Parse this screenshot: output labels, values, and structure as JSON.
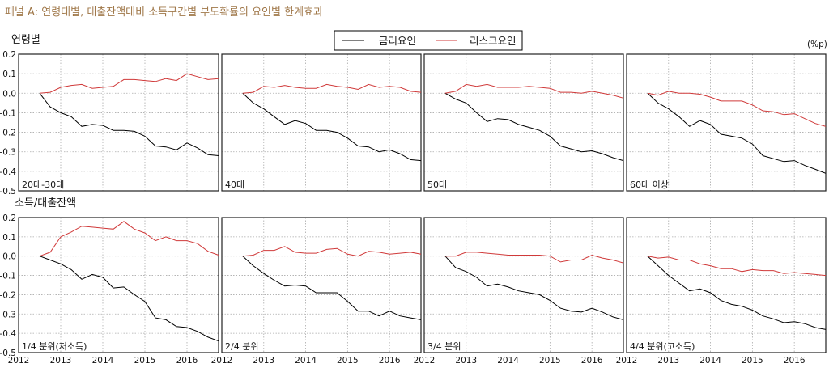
{
  "title": "패널 A: 연령대별, 대출잔액대비 소득구간별 부도확률의 요인별 한계효과",
  "unit": "(%p)",
  "legend": [
    {
      "name": "금리요인",
      "color": "#000000"
    },
    {
      "name": "리스크요인",
      "color": "#d03a3a"
    }
  ],
  "rows": [
    {
      "label": "연령별"
    },
    {
      "label": "소득/대출잔액"
    }
  ],
  "chart_data": {
    "type": "line",
    "grid": true,
    "legend_position": "top-center",
    "x": [
      2012.5,
      2012.75,
      2013,
      2013.25,
      2013.5,
      2013.75,
      2014,
      2014.25,
      2014.5,
      2014.75,
      2015,
      2015.25,
      2015.5,
      2015.75,
      2016,
      2016.25,
      2016.5,
      2016.75
    ],
    "xlim": [
      2012,
      2016.75
    ],
    "xticks": [
      "2012",
      "2013",
      "2014",
      "2015",
      "2016"
    ],
    "ylim": [
      -0.5,
      0.2
    ],
    "yticks": [
      "0.2",
      "0.1",
      "0.0",
      "-0.1",
      "-0.2",
      "-0.3",
      "-0.4",
      "-0.5"
    ],
    "panels": [
      {
        "label": "20대-30대",
        "row": 0,
        "series": [
          {
            "name": "금리요인",
            "values": [
              0,
              -0.07,
              -0.1,
              -0.12,
              -0.17,
              -0.16,
              -0.165,
              -0.19,
              -0.19,
              -0.195,
              -0.22,
              -0.27,
              -0.275,
              -0.29,
              -0.255,
              -0.28,
              -0.315,
              -0.32
            ]
          },
          {
            "name": "리스크요인",
            "values": [
              0,
              0.005,
              0.03,
              0.04,
              0.045,
              0.025,
              0.03,
              0.035,
              0.07,
              0.07,
              0.065,
              0.06,
              0.075,
              0.065,
              0.1,
              0.085,
              0.07,
              0.075
            ]
          }
        ]
      },
      {
        "label": "40대",
        "row": 0,
        "series": [
          {
            "name": "금리요인",
            "values": [
              0,
              -0.05,
              -0.08,
              -0.12,
              -0.16,
              -0.14,
              -0.155,
              -0.19,
              -0.19,
              -0.2,
              -0.23,
              -0.27,
              -0.275,
              -0.3,
              -0.29,
              -0.31,
              -0.34,
              -0.345
            ]
          },
          {
            "name": "리스크요인",
            "values": [
              0,
              0.005,
              0.035,
              0.03,
              0.04,
              0.03,
              0.025,
              0.025,
              0.045,
              0.035,
              0.03,
              0.02,
              0.045,
              0.03,
              0.035,
              0.03,
              0.01,
              0.005
            ]
          }
        ]
      },
      {
        "label": "50대",
        "row": 0,
        "series": [
          {
            "name": "금리요인",
            "values": [
              0,
              -0.03,
              -0.05,
              -0.1,
              -0.145,
              -0.13,
              -0.135,
              -0.16,
              -0.175,
              -0.19,
              -0.22,
              -0.27,
              -0.285,
              -0.3,
              -0.295,
              -0.31,
              -0.33,
              -0.345
            ]
          },
          {
            "name": "리스크요인",
            "values": [
              0,
              0.01,
              0.045,
              0.035,
              0.045,
              0.03,
              0.03,
              0.03,
              0.035,
              0.03,
              0.025,
              0.005,
              0.005,
              0,
              0.01,
              0,
              -0.01,
              -0.025
            ]
          }
        ]
      },
      {
        "label": "60대 이상",
        "row": 0,
        "series": [
          {
            "name": "금리요인",
            "values": [
              0,
              -0.05,
              -0.08,
              -0.12,
              -0.17,
              -0.14,
              -0.16,
              -0.21,
              -0.22,
              -0.23,
              -0.26,
              -0.32,
              -0.335,
              -0.35,
              -0.345,
              -0.37,
              -0.39,
              -0.41
            ]
          },
          {
            "name": "리스크요인",
            "values": [
              0,
              -0.01,
              0.01,
              0,
              0,
              -0.005,
              -0.02,
              -0.04,
              -0.04,
              -0.04,
              -0.06,
              -0.09,
              -0.095,
              -0.11,
              -0.105,
              -0.13,
              -0.155,
              -0.17
            ]
          }
        ]
      },
      {
        "label": "1/4 분위(저소득)",
        "row": 1,
        "series": [
          {
            "name": "금리요인",
            "values": [
              0,
              -0.02,
              -0.04,
              -0.07,
              -0.12,
              -0.095,
              -0.11,
              -0.165,
              -0.16,
              -0.2,
              -0.235,
              -0.32,
              -0.33,
              -0.365,
              -0.37,
              -0.39,
              -0.42,
              -0.44
            ]
          },
          {
            "name": "리스크요인",
            "values": [
              0,
              0.02,
              0.1,
              0.125,
              0.155,
              0.15,
              0.145,
              0.14,
              0.18,
              0.14,
              0.12,
              0.08,
              0.1,
              0.08,
              0.08,
              0.065,
              0.025,
              0.005
            ]
          }
        ]
      },
      {
        "label": "2/4 분위",
        "row": 1,
        "series": [
          {
            "name": "금리요인",
            "values": [
              0,
              -0.05,
              -0.09,
              -0.125,
              -0.155,
              -0.15,
              -0.155,
              -0.19,
              -0.19,
              -0.19,
              -0.235,
              -0.285,
              -0.285,
              -0.31,
              -0.285,
              -0.31,
              -0.32,
              -0.33
            ]
          },
          {
            "name": "리스크요인",
            "values": [
              0,
              0.005,
              0.03,
              0.03,
              0.05,
              0.02,
              0.015,
              0.015,
              0.035,
              0.04,
              0.01,
              0,
              0.025,
              0.02,
              0.01,
              0.015,
              0.02,
              0.01
            ]
          }
        ]
      },
      {
        "label": "3/4 분위",
        "row": 1,
        "series": [
          {
            "name": "금리요인",
            "values": [
              0,
              -0.06,
              -0.08,
              -0.11,
              -0.155,
              -0.145,
              -0.16,
              -0.18,
              -0.19,
              -0.2,
              -0.23,
              -0.27,
              -0.285,
              -0.29,
              -0.27,
              -0.29,
              -0.315,
              -0.33
            ]
          },
          {
            "name": "리스크요인",
            "values": [
              0,
              0,
              0.02,
              0.02,
              0.015,
              0.01,
              0.005,
              0.005,
              0.005,
              0.005,
              0,
              -0.03,
              -0.02,
              -0.02,
              0.005,
              -0.01,
              -0.02,
              -0.035
            ]
          }
        ]
      },
      {
        "label": "4/4 분위(고소득)",
        "row": 1,
        "series": [
          {
            "name": "금리요인",
            "values": [
              0,
              -0.05,
              -0.1,
              -0.14,
              -0.18,
              -0.17,
              -0.19,
              -0.23,
              -0.25,
              -0.26,
              -0.28,
              -0.31,
              -0.325,
              -0.345,
              -0.34,
              -0.35,
              -0.37,
              -0.38
            ]
          },
          {
            "name": "리스크요인",
            "values": [
              0,
              -0.01,
              -0.005,
              -0.02,
              -0.02,
              -0.04,
              -0.05,
              -0.065,
              -0.065,
              -0.08,
              -0.07,
              -0.075,
              -0.075,
              -0.09,
              -0.085,
              -0.09,
              -0.095,
              -0.1
            ]
          }
        ]
      }
    ]
  }
}
